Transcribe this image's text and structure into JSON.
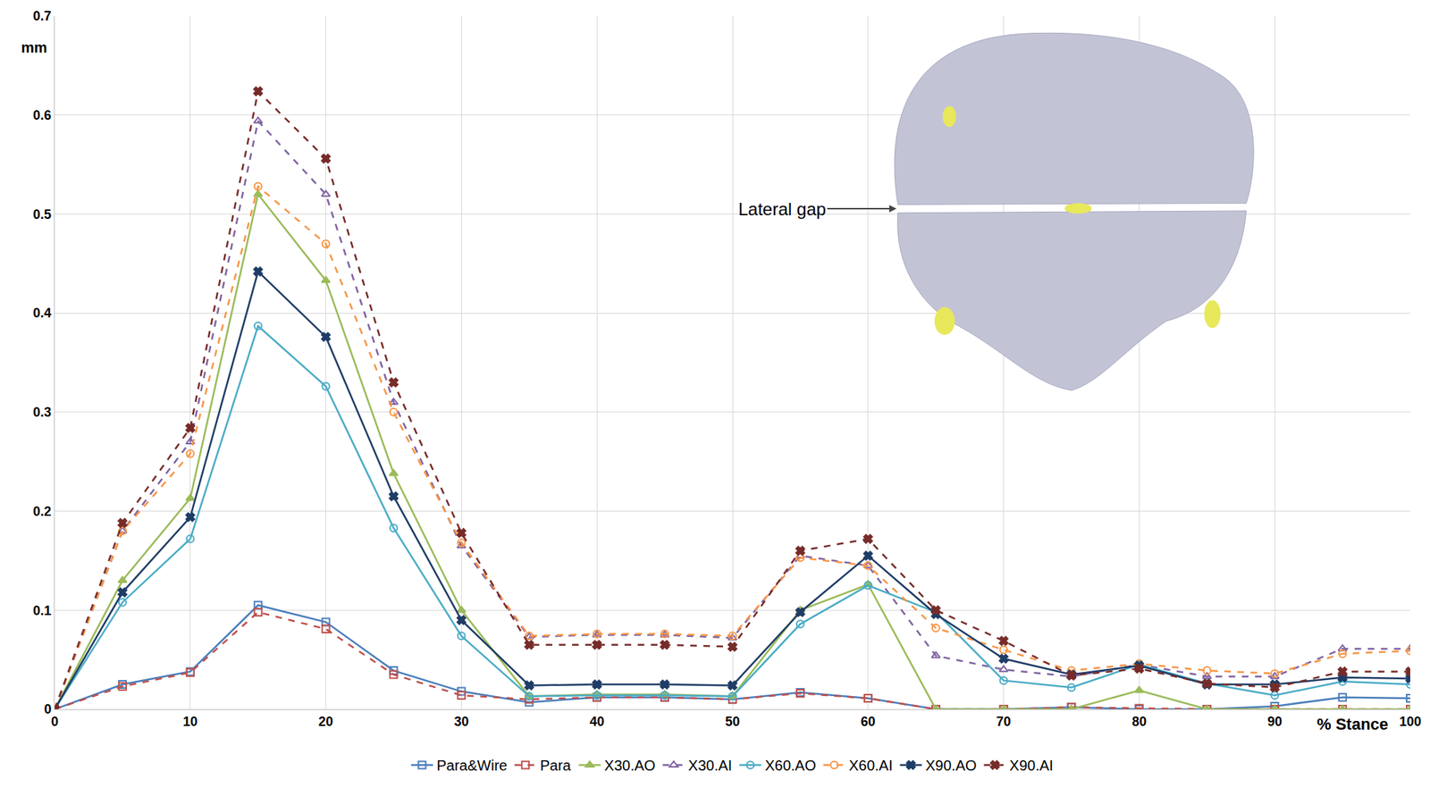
{
  "chart_data": {
    "type": "line",
    "xlabel": "% Stance",
    "ylabel": "mm",
    "annotations": [
      "Lateral gap"
    ],
    "x": [
      0,
      5,
      10,
      15,
      20,
      25,
      30,
      35,
      40,
      45,
      50,
      55,
      60,
      65,
      70,
      75,
      80,
      85,
      90,
      95,
      100
    ],
    "xlim": [
      0,
      100
    ],
    "xticks": [
      0,
      10,
      20,
      30,
      40,
      50,
      60,
      70,
      80,
      90,
      100
    ],
    "ylim": [
      0,
      0.7
    ],
    "yticks": [
      0,
      0.1,
      0.2,
      0.3,
      0.4,
      0.5,
      0.6,
      0.7
    ],
    "grid": true,
    "legend": "bottom",
    "series": [
      {
        "name": "Para&Wire",
        "color": "#4a7ebb",
        "marker": "square-open",
        "line_style": "solid",
        "values": [
          0,
          0.025,
          0.038,
          0.105,
          0.088,
          0.039,
          0.018,
          0.007,
          0.012,
          0.012,
          0.01,
          0.017,
          0.011,
          0,
          0,
          0.002,
          0,
          0,
          0.003,
          0.012,
          0.011
        ]
      },
      {
        "name": "Para",
        "color": "#c0504d",
        "marker": "square-open",
        "line_style": "dash",
        "values": [
          0,
          0.023,
          0.037,
          0.098,
          0.081,
          0.035,
          0.014,
          0.01,
          0.012,
          0.012,
          0.01,
          0.016,
          0.011,
          0,
          0,
          0.002,
          0.001,
          0,
          0,
          0,
          0
        ]
      },
      {
        "name": "X30.AO",
        "color": "#9bbb59",
        "marker": "triangle-up",
        "line_style": "solid",
        "values": [
          0,
          0.13,
          0.213,
          0.52,
          0.433,
          0.238,
          0.1,
          0.013,
          0.015,
          0.015,
          0.013,
          0.1,
          0.126,
          0,
          0,
          0,
          0.019,
          0,
          0,
          0,
          0
        ]
      },
      {
        "name": "X30.AI",
        "color": "#8064a2",
        "marker": "triangle-up-open",
        "line_style": "dash",
        "values": [
          0,
          0.18,
          0.27,
          0.594,
          0.52,
          0.31,
          0.165,
          0.073,
          0.075,
          0.075,
          0.072,
          0.155,
          0.145,
          0.054,
          0.04,
          0.033,
          0.045,
          0.033,
          0.033,
          0.061,
          0.061
        ]
      },
      {
        "name": "X60.AO",
        "color": "#4bacc6",
        "marker": "circle-open",
        "line_style": "solid",
        "values": [
          0,
          0.108,
          0.172,
          0.387,
          0.326,
          0.183,
          0.074,
          0.013,
          0.014,
          0.014,
          0.013,
          0.086,
          0.125,
          0.098,
          0.029,
          0.022,
          0.045,
          0.026,
          0.014,
          0.028,
          0.025
        ]
      },
      {
        "name": "X60.AI",
        "color": "#f79646",
        "marker": "circle-open",
        "line_style": "dash",
        "values": [
          0,
          0.18,
          0.258,
          0.528,
          0.47,
          0.3,
          0.168,
          0.074,
          0.076,
          0.076,
          0.074,
          0.153,
          0.145,
          0.082,
          0.06,
          0.039,
          0.046,
          0.039,
          0.036,
          0.056,
          0.059
        ]
      },
      {
        "name": "X90.AO",
        "color": "#1f3d66",
        "marker": "x",
        "line_style": "solid",
        "values": [
          0,
          0.118,
          0.194,
          0.442,
          0.376,
          0.215,
          0.09,
          0.024,
          0.025,
          0.025,
          0.024,
          0.098,
          0.155,
          0.096,
          0.051,
          0.035,
          0.044,
          0.025,
          0.025,
          0.032,
          0.031
        ]
      },
      {
        "name": "X90.AI",
        "color": "#772c2a",
        "marker": "x",
        "line_style": "dash",
        "values": [
          0,
          0.188,
          0.284,
          0.624,
          0.556,
          0.33,
          0.178,
          0.065,
          0.065,
          0.065,
          0.063,
          0.16,
          0.172,
          0.1,
          0.069,
          0.034,
          0.041,
          0.026,
          0.022,
          0.038,
          0.038
        ]
      }
    ]
  }
}
